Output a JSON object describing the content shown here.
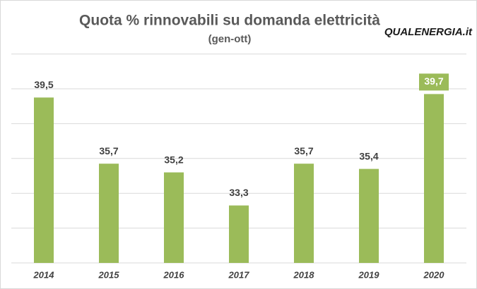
{
  "chart_data": {
    "type": "bar",
    "title": "Quota % rinnovabili su domanda elettricità",
    "subtitle": "(gen-ott)",
    "logo": "QUALENERGIA.it",
    "categories": [
      "2014",
      "2015",
      "2016",
      "2017",
      "2018",
      "2019",
      "2020"
    ],
    "values": [
      39.5,
      35.7,
      35.2,
      33.3,
      35.7,
      35.4,
      39.7
    ],
    "value_labels": [
      "39,5",
      "35,7",
      "35,2",
      "33,3",
      "35,7",
      "35,4",
      "39,7"
    ],
    "color": "#9bbb59",
    "ylim": [
      30,
      42
    ],
    "yticks": [
      30,
      32,
      34,
      36,
      38,
      40,
      42
    ],
    "grid": true
  }
}
